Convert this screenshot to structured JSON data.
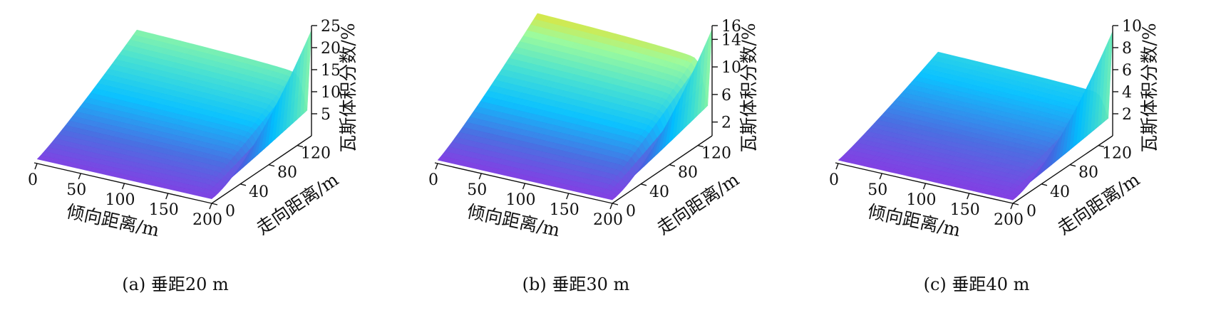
{
  "chart_data": [
    {
      "type": "surface",
      "caption": "(a)  垂距20 m",
      "xlabel": "倾向距离/m",
      "ylabel": "走向距离/m",
      "zlabel": "瓦斯体积分数/%",
      "xticks": [
        0,
        50,
        100,
        150,
        200
      ],
      "yticks": [
        0,
        40,
        80,
        120
      ],
      "zticks": [
        5,
        10,
        15,
        20,
        25
      ],
      "xlim": [
        0,
        200
      ],
      "ylim": [
        0,
        140
      ],
      "zlim": [
        0,
        25
      ],
      "surface": {
        "low_value": 1,
        "plateau_value": 15,
        "peak_value": 24,
        "transition_x": 195,
        "colormap": [
          "#8a2be2",
          "#4169e1",
          "#00bfff",
          "#40e0d0",
          "#98fb98",
          "#ffd700",
          "#ff4500"
        ]
      }
    },
    {
      "type": "surface",
      "caption": "(b)  垂距30 m",
      "xlabel": "倾向距离/m",
      "ylabel": "走向距离/m",
      "zlabel": "瓦斯体积分数/%",
      "xticks": [
        0,
        50,
        100,
        150,
        200
      ],
      "yticks": [
        0,
        40,
        80,
        120
      ],
      "zticks": [
        2,
        6,
        10,
        14,
        16
      ],
      "xlim": [
        0,
        200
      ],
      "ylim": [
        0,
        140
      ],
      "zlim": [
        0,
        16
      ],
      "surface": {
        "low_value": 0.5,
        "plateau_value": 12,
        "peak_value": 15.5,
        "transition_x": 195,
        "colormap": [
          "#8a2be2",
          "#4169e1",
          "#00bfff",
          "#40e0d0",
          "#98fb98",
          "#ffd700",
          "#ff4500"
        ]
      }
    },
    {
      "type": "surface",
      "caption": "(c)  垂距40 m",
      "xlabel": "倾向距离/m",
      "ylabel": "走向距离/m",
      "zlabel": "瓦斯体积分数/%",
      "xticks": [
        0,
        50,
        100,
        150,
        200
      ],
      "yticks": [
        0,
        40,
        80,
        120
      ],
      "zticks": [
        2,
        4,
        6,
        8,
        10
      ],
      "xlim": [
        0,
        200
      ],
      "ylim": [
        0,
        140
      ],
      "zlim": [
        0,
        10
      ],
      "surface": {
        "low_value": 0.3,
        "plateau_value": 4,
        "peak_value": 9.5,
        "transition_x": 195,
        "colormap": [
          "#8a2be2",
          "#4169e1",
          "#00bfff",
          "#40e0d0",
          "#98fb98",
          "#ffd700",
          "#ff4500"
        ]
      }
    }
  ]
}
